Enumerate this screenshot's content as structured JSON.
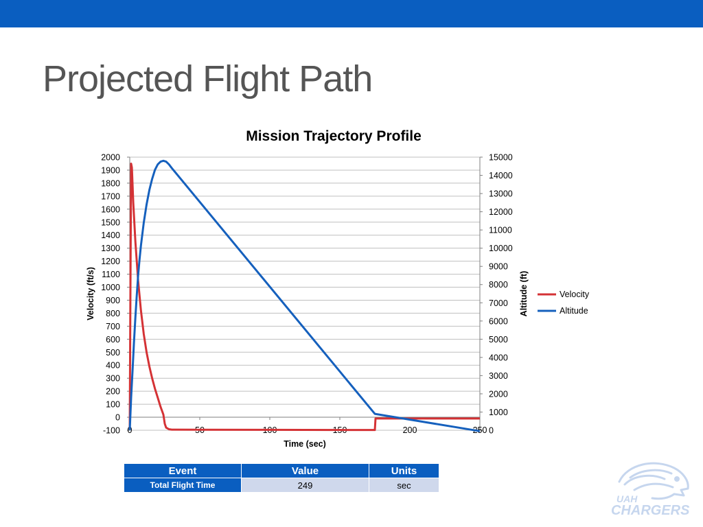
{
  "slide": {
    "title": "Projected Flight Path"
  },
  "colors": {
    "brand": "#0a5ec0",
    "velocity": "#d43235",
    "altitude": "#1560bd",
    "grid": "#bfbfbf",
    "logo": "#c6d6ee"
  },
  "logo": {
    "icon": "uah-chargers-horse-logo",
    "text": "UAH CHARGERS"
  },
  "chart_data": {
    "type": "line",
    "title": "Mission Trajectory Profile",
    "xlabel": "Time (sec)",
    "ylabel": "Velocity (ft/s)",
    "y2label": "Altitude (ft)",
    "xlim": [
      0,
      250
    ],
    "ylim": [
      -100,
      2000
    ],
    "y2lim": [
      0,
      15000
    ],
    "xticks": [
      "0",
      "50",
      "100",
      "150",
      "200",
      "250"
    ],
    "yticks": [
      "-100",
      "0",
      "100",
      "200",
      "300",
      "400",
      "500",
      "600",
      "700",
      "800",
      "900",
      "1000",
      "1100",
      "1200",
      "1300",
      "1400",
      "1500",
      "1600",
      "1700",
      "1800",
      "1900",
      "2000"
    ],
    "y2ticks": [
      "0",
      "1000",
      "2000",
      "3000",
      "4000",
      "5000",
      "6000",
      "7000",
      "8000",
      "9000",
      "10000",
      "11000",
      "12000",
      "13000",
      "14000",
      "15000"
    ],
    "grid": true,
    "legend": "right",
    "series": [
      {
        "name": "Velocity",
        "axis": "left",
        "x": [
          0,
          0.5,
          1,
          1.5,
          2.5,
          4,
          6,
          8,
          10,
          12,
          14,
          16,
          18,
          20,
          22,
          24,
          25,
          26,
          28,
          30,
          50,
          100,
          150,
          175,
          175.5,
          180,
          200,
          230,
          250
        ],
        "y": [
          -100,
          1000,
          1950,
          1920,
          1650,
          1350,
          1050,
          820,
          640,
          500,
          390,
          300,
          220,
          150,
          80,
          20,
          -50,
          -80,
          -92,
          -95,
          -96,
          -97,
          -98,
          -98,
          -10,
          -10,
          -10,
          -10,
          -10
        ]
      },
      {
        "name": "Altitude",
        "axis": "right",
        "x": [
          0,
          1,
          2,
          3,
          4,
          5,
          6,
          7,
          8,
          10,
          12,
          14,
          16,
          18,
          20,
          22,
          24,
          26,
          28,
          30,
          175,
          250
        ],
        "y": [
          0,
          1800,
          3300,
          4800,
          6200,
          7400,
          8500,
          9400,
          10150,
          11400,
          12400,
          13200,
          13800,
          14300,
          14600,
          14750,
          14800,
          14750,
          14600,
          14400,
          900,
          -50
        ]
      }
    ]
  },
  "table": {
    "headers": [
      "Event",
      "Value",
      "Units"
    ],
    "rows": [
      [
        "Total Flight Time",
        "249",
        "sec"
      ]
    ]
  }
}
